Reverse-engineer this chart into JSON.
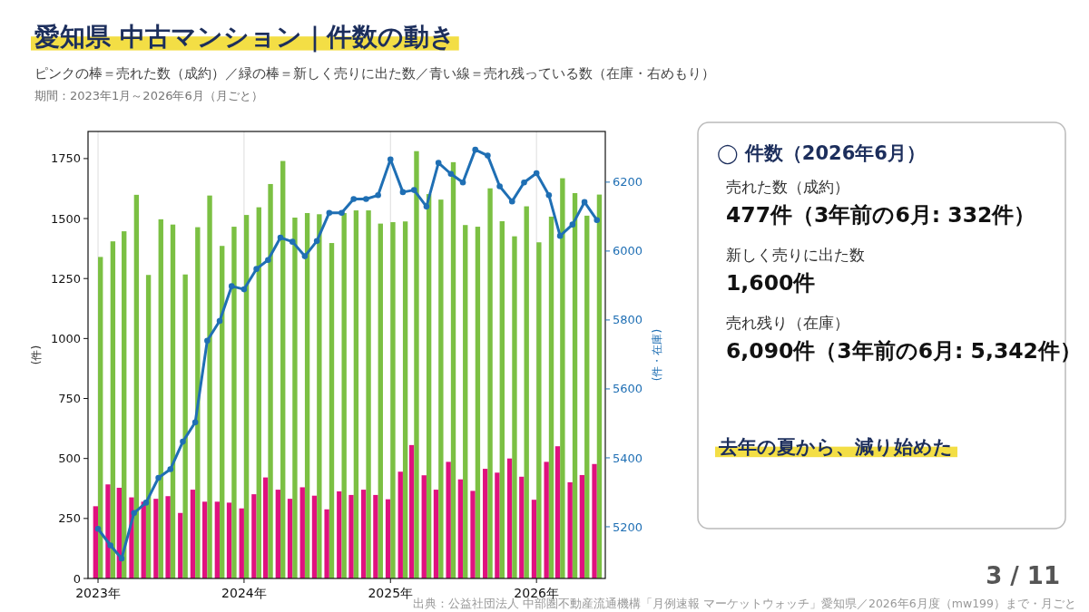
{
  "chart_data": [
    {
      "type": "bar",
      "title": "愛知県 中古マンション｜件数の動き",
      "subtitle": "ピンクの棒＝売れた数（成約）／緑の棒＝新しく売りに出た数／青い線＝売れ残っている数（在庫・右めもり）",
      "ylabel": "(件)",
      "y2label": "(件・在庫)",
      "x": [
        "2023-01",
        "2023-02",
        "2023-03",
        "2023-04",
        "2023-05",
        "2023-06",
        "2023-07",
        "2023-08",
        "2023-09",
        "2023-10",
        "2023-11",
        "2023-12",
        "2024-01",
        "2024-02",
        "2024-03",
        "2024-04",
        "2024-05",
        "2024-06",
        "2024-07",
        "2024-08",
        "2024-09",
        "2024-10",
        "2024-11",
        "2024-12",
        "2025-01",
        "2025-02",
        "2025-03",
        "2025-04",
        "2025-05",
        "2025-06",
        "2025-07",
        "2025-08",
        "2025-09",
        "2025-10",
        "2025-11",
        "2025-12",
        "2026-01",
        "2026-02",
        "2026-03",
        "2026-04",
        "2026-05",
        "2026-06"
      ],
      "xlim": [
        "2022-12-07",
        "2026-06-22"
      ],
      "xticks": [
        {
          "value": "2023-01",
          "label": "2023年"
        },
        {
          "value": "2024-01",
          "label": "2024年"
        },
        {
          "value": "2025-01",
          "label": "2025年"
        },
        {
          "value": "2026-01",
          "label": "2026年"
        }
      ],
      "ylim": [
        0,
        1863
      ],
      "yticks": [
        0,
        250,
        500,
        750,
        1000,
        1250,
        1500,
        1750
      ],
      "y2lim": [
        5050,
        6347
      ],
      "y2ticks": [
        5200,
        5400,
        5600,
        5800,
        6000,
        6200
      ],
      "grid": "x",
      "marker": "circle",
      "line_style": "solid",
      "series": [
        {
          "type": "bar",
          "color": "#e0117f",
          "values": [
            301,
            392,
            378,
            338,
            320,
            332,
            343,
            273,
            370,
            320,
            320,
            316,
            292,
            351,
            421,
            370,
            332,
            380,
            345,
            288,
            363,
            348,
            370,
            348,
            330,
            445,
            556,
            430,
            370,
            486,
            413,
            365,
            457,
            441,
            500,
            424,
            328,
            486,
            551,
            401,
            431,
            477
          ]
        },
        {
          "type": "bar",
          "color": "#7bc043",
          "values": [
            1340,
            1405,
            1447,
            1599,
            1265,
            1497,
            1475,
            1267,
            1464,
            1596,
            1386,
            1466,
            1515,
            1547,
            1644,
            1740,
            1504,
            1523,
            1518,
            1398,
            1523,
            1534,
            1534,
            1479,
            1485,
            1488,
            1781,
            1602,
            1579,
            1735,
            1473,
            1466,
            1626,
            1489,
            1426,
            1551,
            1401,
            1508,
            1668,
            1606,
            1512,
            1600
          ]
        },
        {
          "type": "line",
          "axis": "y2",
          "color": "#1f6fb4",
          "values": [
            5194,
            5146,
            5108,
            5240,
            5270,
            5342,
            5367,
            5447,
            5503,
            5740,
            5797,
            5898,
            5889,
            5948,
            5974,
            6039,
            6027,
            5985,
            6029,
            6111,
            6111,
            6151,
            6151,
            6162,
            6266,
            6171,
            6177,
            6129,
            6256,
            6224,
            6199,
            6294,
            6277,
            6188,
            6144,
            6199,
            6226,
            6162,
            6044,
            6077,
            6142,
            6090
          ]
        }
      ],
      "annotations": [
        "期間：2023年1月～2026年6月（月ごと）",
        "出典：公益社団法人 中部圏不動産流通機構「月例速報 マーケットウォッチ」愛知県／2026年6月度（mw199）まで・月ごと",
        "3 / 11"
      ]
    },
    {
      "type": "other",
      "title": "◯ 件数（2026年6月）",
      "annotations": [
        "売れた数（成約）",
        "477件（3年前の6月: 332件）",
        "新しく売りに出た数",
        "1,600件",
        "売れ残り（在庫）",
        "6,090件（3年前の6月: 5,342件）",
        "去年の夏から、減り始めた"
      ]
    }
  ]
}
